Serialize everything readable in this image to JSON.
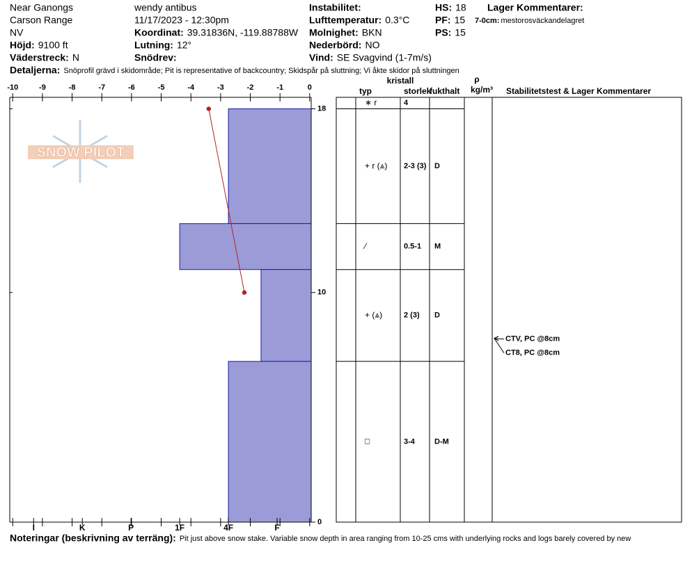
{
  "header": {
    "location": [
      "Near Ganongs",
      "Carson Range",
      "NV"
    ],
    "observer": "wendy antibus",
    "datetime": "11/17/2023 - 12:30pm",
    "elevation": {
      "label": "Höjd:",
      "value": "9100 ft"
    },
    "aspect": {
      "label": "Väderstreck:",
      "value": "N"
    },
    "coordinates": {
      "label": "Koordinat:",
      "value": "39.31836N, -119.88788W"
    },
    "slope": {
      "label": "Lutning:",
      "value": "12°"
    },
    "wind_loading": {
      "label": "Snödrev:"
    },
    "instability": {
      "label": "Instabilitet:"
    },
    "air_temp": {
      "label": "Lufttemperatur:",
      "value": "0.3°C"
    },
    "sky": {
      "label": "Molnighet:",
      "value": "BKN"
    },
    "precip": {
      "label": "Nederbörd:",
      "value": "NO"
    },
    "wind": {
      "label": "Vind:",
      "value": "SE Svagvind (1-7m/s)"
    },
    "hs": {
      "label": "HS:",
      "value": "18"
    },
    "pf": {
      "label": "PF:",
      "value": "15"
    },
    "ps": {
      "label": "PS:",
      "value": "15"
    },
    "layer_comments": {
      "label": "Lager Kommentarer:",
      "range": "7-0cm:",
      "text": "mestorosväckandelagret"
    },
    "details": {
      "label": "Detaljerna:",
      "value": "Snöprofil grävd i skidområde;  Pit is representative of backcountry;  Skidspår på sluttning;  Vi åkte skidor på sluttningen"
    }
  },
  "logo": "SNOW PILOT",
  "chart_data": {
    "type": "snow-profile",
    "xlim": [
      -10.1,
      0.05
    ],
    "xticks": [
      -10,
      -9,
      -8,
      -7,
      -6,
      -5,
      -4,
      -3,
      -2,
      -1,
      0
    ],
    "ylim": [
      0,
      18.5
    ],
    "yticks": [
      0,
      10,
      18
    ],
    "hardness_lim": [
      0.3,
      6.49
    ],
    "hardness_ticks": [
      {
        "value": 6,
        "label": "I"
      },
      {
        "value": 5,
        "label": "K"
      },
      {
        "value": 4,
        "label": "P"
      },
      {
        "value": 3,
        "label": "1F"
      },
      {
        "value": 2,
        "label": "4F"
      },
      {
        "value": 1,
        "label": "F"
      }
    ],
    "layer_color": "#9b9bd8",
    "layer_edge": "#1c1ca8",
    "layers": [
      {
        "top": 18,
        "bottom": 13,
        "hardness": 2,
        "grain": "+ r (⩓)",
        "size": "2-3 (3)",
        "moisture": "D"
      },
      {
        "top": 13,
        "bottom": 11,
        "hardness": 3,
        "grain": "⁄",
        "size": "0.5-1",
        "moisture": "M"
      },
      {
        "top": 11,
        "bottom": 7,
        "hardness": 1.33,
        "grain": "+ (⩓)",
        "size": "2 (3)",
        "moisture": "D"
      },
      {
        "top": 7,
        "bottom": 0,
        "hardness": 2,
        "grain": "□",
        "size": "3-4",
        "moisture": "D-M"
      }
    ],
    "temperature": {
      "depths": [
        18,
        10
      ],
      "values": [
        -3.4,
        -2.2
      ],
      "color": "#b22222"
    },
    "surface": {
      "grain": "∗ r",
      "size": "4"
    },
    "table_headers": {
      "crystal": "kristall",
      "type": "typ",
      "size": "storlek",
      "moisture": "fukthalt",
      "rho": "ρ",
      "density_unit": "kg/m³",
      "comments": "Stabilitetstest & Lager Kommentarer"
    },
    "stability_tests": [
      {
        "depth": 8,
        "label": "CTV, PC @8cm"
      },
      {
        "depth": 8,
        "label": "CT8, PC @8cm"
      }
    ]
  },
  "notes": {
    "label": "Noteringar (beskrivning av terräng):",
    "value": "Pit just above snow stake.  Variable snow depth in area ranging from 10-25 cms with underlying rocks and logs barely covered by new"
  }
}
